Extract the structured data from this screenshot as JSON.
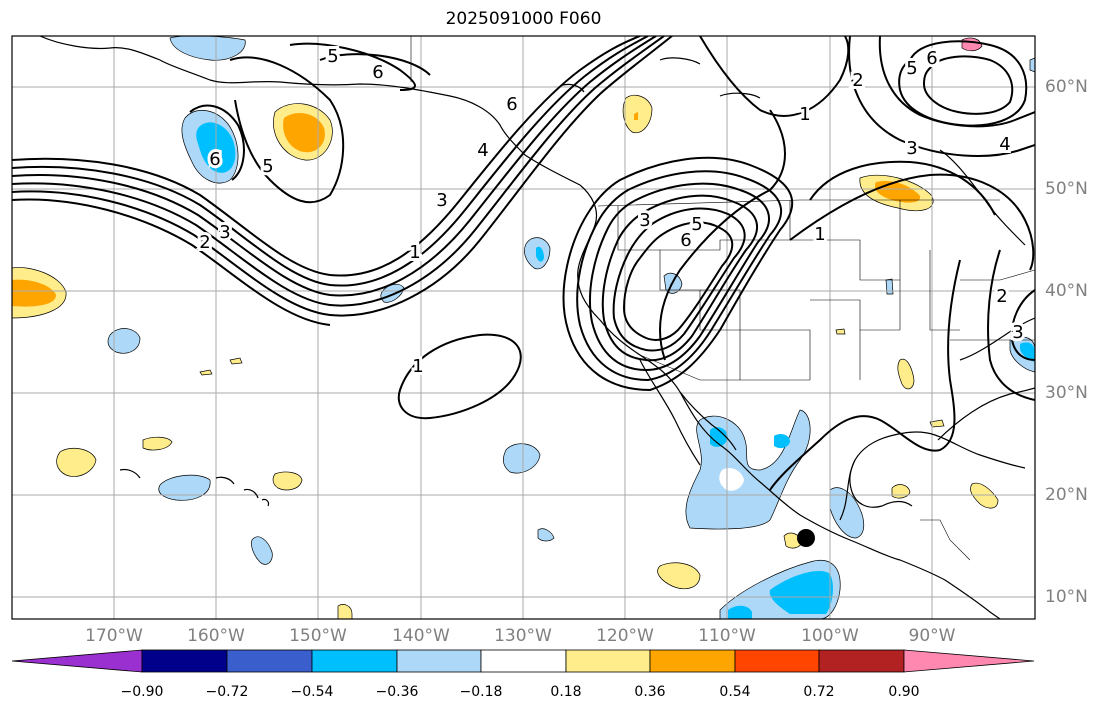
{
  "title": "2025091000 F060",
  "map": {
    "lat_labels": [
      "60°N",
      "50°N",
      "40°N",
      "30°N",
      "20°N",
      "10°N"
    ],
    "lon_labels": [
      "170°W",
      "160°W",
      "150°W",
      "140°W",
      "130°W",
      "120°W",
      "110°W",
      "100°W",
      "90°W"
    ],
    "contour_labels": [
      "5",
      "6",
      "6",
      "5",
      "2",
      "3",
      "1",
      "1",
      "3",
      "4",
      "6",
      "3",
      "5",
      "6",
      "1",
      "1",
      "2",
      "3",
      "4",
      "5",
      "6",
      "2",
      "3"
    ],
    "marker": "storm-location-dot"
  },
  "colorbar": {
    "tick_labels": [
      "−0.90",
      "−0.72",
      "−0.54",
      "−0.36",
      "−0.18",
      "0.18",
      "0.36",
      "0.54",
      "0.72",
      "0.90"
    ],
    "colors": [
      "#9b30d0",
      "#00008b",
      "#3a5fcd",
      "#00bfff",
      "#add8f7",
      "#ffffff",
      "#ffec8b",
      "#ffa500",
      "#ff4500",
      "#b22222",
      "#ff88b0"
    ]
  }
}
